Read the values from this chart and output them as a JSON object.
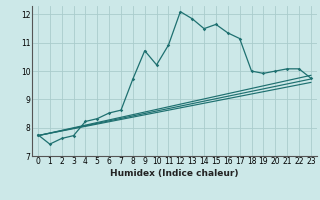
{
  "xlabel": "Humidex (Indice chaleur)",
  "background_color": "#cce8e8",
  "grid_color": "#aacccc",
  "line_color": "#1e7070",
  "xlim": [
    -0.5,
    23.5
  ],
  "ylim": [
    7,
    12.3
  ],
  "yticks": [
    7,
    8,
    9,
    10,
    11,
    12
  ],
  "xticks": [
    0,
    1,
    2,
    3,
    4,
    5,
    6,
    7,
    8,
    9,
    10,
    11,
    12,
    13,
    14,
    15,
    16,
    17,
    18,
    19,
    20,
    21,
    22,
    23
  ],
  "main_x": [
    0,
    1,
    2,
    3,
    4,
    5,
    6,
    7,
    8,
    9,
    10,
    11,
    12,
    13,
    14,
    15,
    16,
    17,
    18,
    19,
    20,
    21,
    22,
    23
  ],
  "main_y": [
    7.75,
    7.42,
    7.62,
    7.72,
    8.22,
    8.32,
    8.52,
    8.62,
    9.72,
    10.72,
    10.22,
    10.92,
    12.1,
    11.85,
    11.5,
    11.65,
    11.35,
    11.15,
    10.0,
    9.92,
    10.0,
    10.08,
    10.08,
    9.75
  ],
  "ref_lines": [
    {
      "x": [
        0,
        23
      ],
      "y": [
        7.72,
        9.72
      ]
    },
    {
      "x": [
        0,
        23
      ],
      "y": [
        7.72,
        9.85
      ]
    },
    {
      "x": [
        0,
        23
      ],
      "y": [
        7.72,
        9.6
      ]
    }
  ]
}
